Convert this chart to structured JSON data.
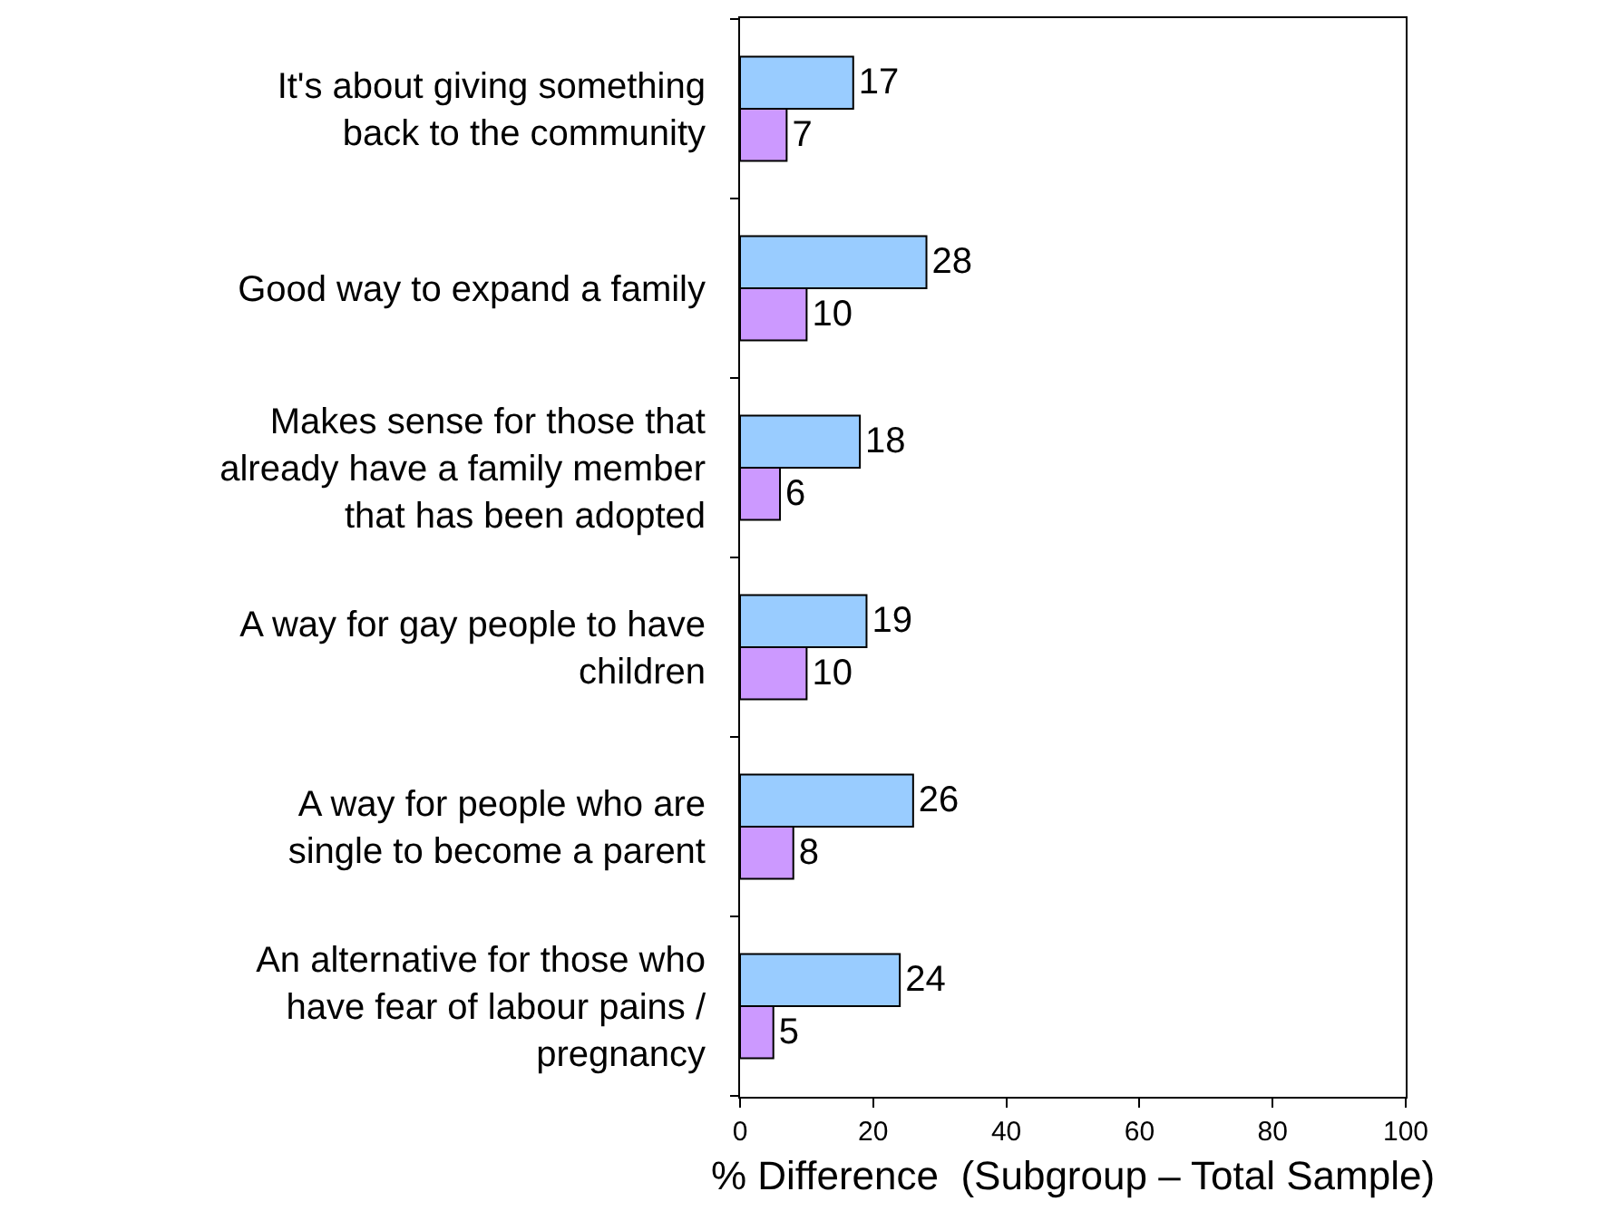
{
  "chart_data": {
    "type": "bar",
    "orientation": "horizontal",
    "xlabel": "% Difference  (Subgroup – Total Sample)",
    "categories": [
      "It's about giving something back to the community",
      "Good way to expand a family",
      "Makes sense for those that already have a family member that has been adopted",
      "A way for gay people to have children",
      "A way for people who are single to become a parent",
      "An alternative for those who have fear of labour pains / pregnancy"
    ],
    "series": [
      {
        "color": "#99ccff",
        "values": [
          17,
          28,
          18,
          19,
          26,
          24
        ]
      },
      {
        "color": "#cc99ff",
        "values": [
          7,
          10,
          6,
          10,
          8,
          5
        ]
      }
    ],
    "xlim": [
      0,
      100
    ],
    "xticks": [
      0,
      20,
      40,
      60,
      80,
      100
    ],
    "legend": false,
    "data_labels": true
  }
}
